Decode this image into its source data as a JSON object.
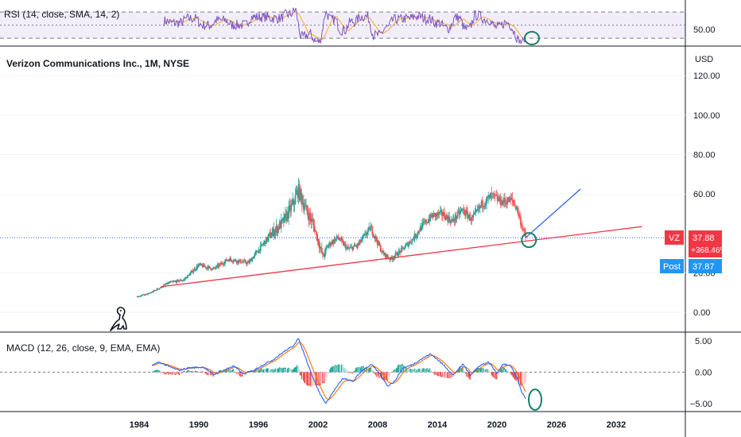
{
  "header": {
    "symbol_title": "Verizon Communications Inc., 1M, NYSE",
    "currency": "USD"
  },
  "rsi": {
    "label": "RSI (14, close, SMA, 14, 2)",
    "axis_label": "50.00"
  },
  "macd": {
    "label": "MACD (12, 26, close, 9, EMA, EMA)",
    "ticks": [
      "5.00",
      "0.00",
      "−5.00"
    ]
  },
  "price_badges": {
    "ticker": "VZ",
    "last": "37.88",
    "change": "+368.46%",
    "post_label": "Post",
    "post": "37.87"
  },
  "colors": {
    "up": "#26a69a",
    "down": "#ef5350",
    "rsi_line": "#7e57c2",
    "rsi_ma": "#f5b74a",
    "macd_line": "#2962ff",
    "signal_line": "#ff6d00",
    "trend_support": "#f23645",
    "trend_projection": "#2962ff",
    "annotation_circle": "#1b7f67",
    "badge_red": "#f23645",
    "badge_blue": "#2196f3"
  },
  "icons": {
    "watermark": "dinosaur-logo-icon"
  },
  "chart_data": [
    {
      "type": "candlestick",
      "name": "VZ monthly price",
      "x_ticks": [
        "1984",
        "1990",
        "1996",
        "2002",
        "2008",
        "2014",
        "2020",
        "2026",
        "2032"
      ],
      "x_range": [
        1983,
        2036
      ],
      "y_ticks": [
        "120.00",
        "100.00",
        "80.00",
        "60.00",
        "20.00",
        "0.00"
      ],
      "ylim": [
        -10,
        135
      ],
      "trend_points": [
        [
          1983.8,
          8
        ],
        [
          1985,
          9.5
        ],
        [
          1987,
          15
        ],
        [
          1988.5,
          16.5
        ],
        [
          1990,
          24
        ],
        [
          1991.5,
          22
        ],
        [
          1993,
          27
        ],
        [
          1995,
          25
        ],
        [
          1997,
          38
        ],
        [
          1998.5,
          46
        ],
        [
          1999.5,
          55
        ],
        [
          2000,
          62
        ],
        [
          2000.8,
          52
        ],
        [
          2001.5,
          45
        ],
        [
          2002.5,
          28
        ],
        [
          2003,
          34
        ],
        [
          2004,
          38
        ],
        [
          2005,
          32
        ],
        [
          2006,
          34
        ],
        [
          2007.3,
          43
        ],
        [
          2008.5,
          30
        ],
        [
          2009.3,
          27
        ],
        [
          2010.5,
          32
        ],
        [
          2011.5,
          37
        ],
        [
          2012.5,
          44
        ],
        [
          2013.5,
          49
        ],
        [
          2014.5,
          50
        ],
        [
          2015.5,
          46
        ],
        [
          2016.5,
          52
        ],
        [
          2017.5,
          47
        ],
        [
          2018.5,
          55
        ],
        [
          2019.5,
          59
        ],
        [
          2020.5,
          56
        ],
        [
          2021.5,
          57
        ],
        [
          2022,
          53
        ],
        [
          2022.5,
          44
        ],
        [
          2022.9,
          37.9
        ]
      ],
      "support_line": {
        "from": [
          1986.2,
          13
        ],
        "to": [
          2034.6,
          43.5
        ]
      },
      "projection_line": {
        "from": [
          2022.9,
          37.9
        ],
        "to": [
          2028.4,
          62.5
        ]
      },
      "last_price": 37.88
    },
    {
      "type": "line",
      "name": "RSI",
      "x_range": [
        1983,
        2036
      ],
      "ylim": [
        18,
        86
      ],
      "bands": [
        70,
        50,
        30
      ],
      "rsi_ticks": [
        "50.00"
      ]
    },
    {
      "type": "bar",
      "name": "MACD",
      "x_range": [
        1983,
        2036
      ],
      "ylim": [
        -6.3,
        6.4
      ],
      "macd_ticks": [
        5,
        0,
        -5
      ],
      "macd_points": [
        [
          1985.3,
          1.1
        ],
        [
          1986,
          1.6
        ],
        [
          1987,
          0.9
        ],
        [
          1988,
          0.3
        ],
        [
          1989,
          0.7
        ],
        [
          1990.5,
          0.8
        ],
        [
          1991.5,
          -0.4
        ],
        [
          1992.5,
          0.3
        ],
        [
          1993.5,
          1.0
        ],
        [
          1994.5,
          -0.3
        ],
        [
          1995.5,
          0.3
        ],
        [
          1996.5,
          1.2
        ],
        [
          1997.5,
          2.0
        ],
        [
          1998.5,
          3.2
        ],
        [
          1999.5,
          4.2
        ],
        [
          2000,
          5.4
        ],
        [
          2000.6,
          3.0
        ],
        [
          2001.4,
          -0.5
        ],
        [
          2002.2,
          -3.5
        ],
        [
          2002.8,
          -5.0
        ],
        [
          2003.5,
          -3.2
        ],
        [
          2004.5,
          -1.0
        ],
        [
          2005.5,
          -1.5
        ],
        [
          2006.5,
          0.4
        ],
        [
          2007.4,
          1.2
        ],
        [
          2008.3,
          -0.4
        ],
        [
          2009,
          -2.2
        ],
        [
          2009.7,
          -1.5
        ],
        [
          2010.5,
          0.6
        ],
        [
          2011.5,
          1.2
        ],
        [
          2012.3,
          2.0
        ],
        [
          2013.3,
          2.9
        ],
        [
          2013.9,
          2.2
        ],
        [
          2014.8,
          0.9
        ],
        [
          2015.6,
          -0.5
        ],
        [
          2016.6,
          1.3
        ],
        [
          2017.3,
          -0.5
        ],
        [
          2018.3,
          1.1
        ],
        [
          2019.2,
          1.6
        ],
        [
          2020,
          -0.2
        ],
        [
          2020.6,
          1.3
        ],
        [
          2021.4,
          1.0
        ],
        [
          2022,
          -0.8
        ],
        [
          2022.5,
          -3.2
        ],
        [
          2022.9,
          -4.2
        ]
      ]
    }
  ]
}
